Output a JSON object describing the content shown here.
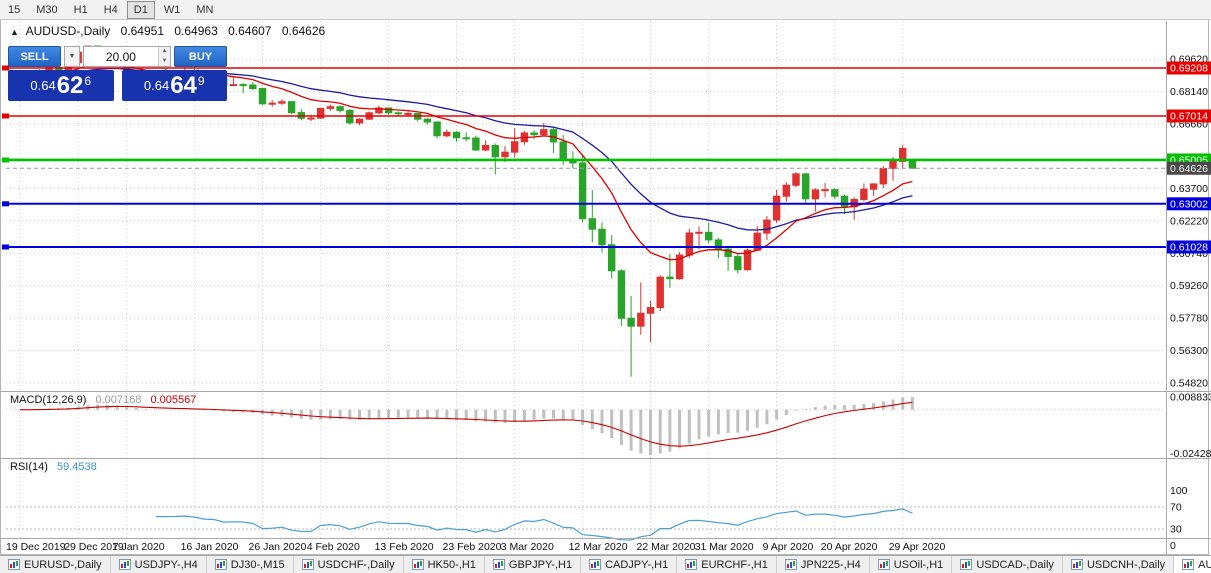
{
  "toolbar": {
    "timeframes": [
      {
        "label": "15",
        "active": false
      },
      {
        "label": "M30",
        "active": false
      },
      {
        "label": "H1",
        "active": false
      },
      {
        "label": "H4",
        "active": false
      },
      {
        "label": "D1",
        "active": true
      },
      {
        "label": "W1",
        "active": false
      },
      {
        "label": "MN",
        "active": false
      }
    ]
  },
  "chart_header": {
    "collapse_arrow": "▲",
    "title": "AUDUSD-,Daily",
    "open": "0.64951",
    "high": "0.64963",
    "low": "0.64607",
    "close": "0.64626"
  },
  "one_click": {
    "sell_label": "SELL",
    "buy_label": "BUY",
    "volume": "20.00",
    "dropdown_glyph": "▼",
    "spinner_up": "▲",
    "spinner_down": "▼",
    "sell_price_prefix": "0.64",
    "sell_price_big": "62",
    "sell_price_sup": "6",
    "buy_price_prefix": "0.64",
    "buy_price_big": "64",
    "buy_price_sup": "9"
  },
  "price_axis": {
    "ticks": [
      "0.69620",
      "0.68140",
      "0.66660",
      "0.63700",
      "0.62220",
      "0.60740",
      "0.59260",
      "0.57780",
      "0.56300",
      "0.54820"
    ],
    "current": {
      "label": "0.64626",
      "value": 0.64626,
      "color": "#4a4a4a"
    }
  },
  "hlines": [
    {
      "label": "0.69208",
      "value": 0.69208,
      "color": "#e60000",
      "width": 1.4
    },
    {
      "label": "0.67014",
      "value": 0.67014,
      "color": "#e60000",
      "width": 1.4
    },
    {
      "label": "0.65005",
      "value": 0.65005,
      "color": "#00c000",
      "width": 2.6
    },
    {
      "label": "0.63002",
      "value": 0.63002,
      "color": "#0000dd",
      "width": 2
    },
    {
      "label": "0.61028",
      "value": 0.61028,
      "color": "#0000dd",
      "width": 2
    }
  ],
  "time_axis": [
    {
      "label": "19 Dec 2019",
      "idx": 0
    },
    {
      "label": "29 Dec 2019",
      "idx": 6
    },
    {
      "label": "7 Jan 2020",
      "idx": 11
    },
    {
      "label": "16 Jan 2020",
      "idx": 18
    },
    {
      "label": "26 Jan 2020",
      "idx": 25
    },
    {
      "label": "4 Feb 2020",
      "idx": 31
    },
    {
      "label": "13 Feb 2020",
      "idx": 38
    },
    {
      "label": "23 Feb 2020",
      "idx": 45
    },
    {
      "label": "3 Mar 2020",
      "idx": 51
    },
    {
      "label": "12 Mar 2020",
      "idx": 58
    },
    {
      "label": "22 Mar 2020",
      "idx": 65
    },
    {
      "label": "31 Mar 2020",
      "idx": 71
    },
    {
      "label": "9 Apr 2020",
      "idx": 78
    },
    {
      "label": "20 Apr 2020",
      "idx": 84
    },
    {
      "label": "29 Apr 2020",
      "idx": 91
    }
  ],
  "macd_panel": {
    "name": "MACD(12,26,9)",
    "value_main": "0.007168",
    "value_signal": "0.005567",
    "axis_high": "0.008833",
    "axis_low": "-0.024281",
    "histogram_color": "#c0c0c0",
    "signal_color": "#cc0000"
  },
  "rsi_panel": {
    "name": "RSI(14)",
    "value": "59.4538",
    "axis": [
      "100",
      "70",
      "30",
      "0"
    ],
    "levels": [
      70,
      30
    ],
    "line_color": "#4da0d6"
  },
  "chart_data": {
    "type": "candlestick",
    "title": "AUDUSD-,Daily",
    "color_convention": "red body = bullish, green body = bearish",
    "up_color": "#e03030",
    "down_color": "#28a428",
    "ma_fast": {
      "name": "MA fast (red)",
      "derived": "EMA12 of closes",
      "color": "#e00000"
    },
    "ma_slow": {
      "name": "MA slow (blue)",
      "derived": "EMA26 of closes",
      "color": "#1a1aa6"
    },
    "ylim": [
      0.5449,
      0.7026
    ],
    "horizontal_levels": [
      0.69208,
      0.67014,
      0.65005,
      0.63002,
      0.61028
    ],
    "last_price": 0.64626,
    "indicators": [
      {
        "type": "MACD",
        "params": [
          12,
          26,
          9
        ],
        "current": [
          0.007168,
          0.005567
        ],
        "axis_extremes": [
          0.008833,
          -0.024281
        ]
      },
      {
        "type": "RSI",
        "params": [
          14
        ],
        "current": 59.4538,
        "levels": [
          70,
          30
        ]
      }
    ],
    "ohlc": [
      [
        0.6852,
        0.6885,
        0.6844,
        0.6881
      ],
      [
        0.6881,
        0.6906,
        0.687,
        0.69
      ],
      [
        0.69,
        0.6915,
        0.6888,
        0.6907
      ],
      [
        0.6907,
        0.6925,
        0.69,
        0.6923
      ],
      [
        0.6923,
        0.693,
        0.6903,
        0.6914
      ],
      [
        0.6914,
        0.6946,
        0.6908,
        0.6945
      ],
      [
        0.6945,
        0.7,
        0.6938,
        0.6993
      ],
      [
        0.6993,
        0.7021,
        0.6983,
        0.7021
      ],
      [
        0.7021,
        0.7021,
        0.698,
        0.6983
      ],
      [
        0.6983,
        0.6995,
        0.6937,
        0.695
      ],
      [
        0.695,
        0.6958,
        0.6925,
        0.6935
      ],
      [
        0.6935,
        0.6941,
        0.6855,
        0.6865
      ],
      [
        0.6865,
        0.6884,
        0.685,
        0.6868
      ],
      [
        0.6868,
        0.6875,
        0.6849,
        0.6855
      ],
      [
        0.6855,
        0.6905,
        0.6853,
        0.6901
      ],
      [
        0.6901,
        0.692,
        0.689,
        0.69
      ],
      [
        0.69,
        0.6911,
        0.6886,
        0.6901
      ],
      [
        0.6901,
        0.6926,
        0.6893,
        0.6906
      ],
      [
        0.6906,
        0.6933,
        0.689,
        0.6896
      ],
      [
        0.6896,
        0.6904,
        0.687,
        0.6875
      ],
      [
        0.6875,
        0.6884,
        0.6863,
        0.6871
      ],
      [
        0.6871,
        0.6878,
        0.6836,
        0.6842
      ],
      [
        0.6842,
        0.6879,
        0.684,
        0.6845
      ],
      [
        0.6845,
        0.6852,
        0.6806,
        0.6843
      ],
      [
        0.6843,
        0.6857,
        0.682,
        0.6827
      ],
      [
        0.6827,
        0.6831,
        0.6753,
        0.6757
      ],
      [
        0.6757,
        0.6774,
        0.6744,
        0.676
      ],
      [
        0.676,
        0.6778,
        0.6752,
        0.6767
      ],
      [
        0.6767,
        0.677,
        0.671,
        0.6717
      ],
      [
        0.6717,
        0.6733,
        0.6682,
        0.6691
      ],
      [
        0.6691,
        0.6708,
        0.6678,
        0.6692
      ],
      [
        0.6692,
        0.674,
        0.6688,
        0.6736
      ],
      [
        0.6736,
        0.6753,
        0.6725,
        0.6744
      ],
      [
        0.6744,
        0.675,
        0.6717,
        0.6727
      ],
      [
        0.6727,
        0.6733,
        0.6662,
        0.667
      ],
      [
        0.667,
        0.6692,
        0.666,
        0.6687
      ],
      [
        0.6687,
        0.6722,
        0.6683,
        0.6716
      ],
      [
        0.6716,
        0.6748,
        0.671,
        0.6738
      ],
      [
        0.6738,
        0.674,
        0.6706,
        0.6716
      ],
      [
        0.6716,
        0.6723,
        0.67,
        0.6713
      ],
      [
        0.6713,
        0.6723,
        0.67,
        0.6713
      ],
      [
        0.6713,
        0.6715,
        0.6677,
        0.6687
      ],
      [
        0.6687,
        0.6691,
        0.6662,
        0.6674
      ],
      [
        0.6674,
        0.6677,
        0.66,
        0.6611
      ],
      [
        0.6611,
        0.664,
        0.6604,
        0.6627
      ],
      [
        0.6627,
        0.6633,
        0.6585,
        0.6602
      ],
      [
        0.6602,
        0.6627,
        0.6586,
        0.6601
      ],
      [
        0.6601,
        0.6612,
        0.6542,
        0.6546
      ],
      [
        0.6546,
        0.659,
        0.6541,
        0.6567
      ],
      [
        0.6567,
        0.6576,
        0.6434,
        0.6515
      ],
      [
        0.6515,
        0.6563,
        0.6491,
        0.6536
      ],
      [
        0.6536,
        0.6646,
        0.6511,
        0.6584
      ],
      [
        0.6584,
        0.6634,
        0.657,
        0.6624
      ],
      [
        0.6624,
        0.6637,
        0.6596,
        0.6616
      ],
      [
        0.6616,
        0.667,
        0.6607,
        0.6639
      ],
      [
        0.6639,
        0.6648,
        0.6533,
        0.6583
      ],
      [
        0.6583,
        0.6614,
        0.6477,
        0.65
      ],
      [
        0.65,
        0.654,
        0.6463,
        0.6487
      ],
      [
        0.6487,
        0.6527,
        0.6214,
        0.6232
      ],
      [
        0.6232,
        0.6363,
        0.6124,
        0.6184
      ],
      [
        0.6184,
        0.6215,
        0.6078,
        0.6113
      ],
      [
        0.6113,
        0.6157,
        0.5958,
        0.5994
      ],
      [
        0.5994,
        0.6001,
        0.5742,
        0.5777
      ],
      [
        0.5777,
        0.588,
        0.551,
        0.5741
      ],
      [
        0.5741,
        0.5941,
        0.5702,
        0.58
      ],
      [
        0.58,
        0.5857,
        0.5668,
        0.5826
      ],
      [
        0.5826,
        0.5974,
        0.581,
        0.5965
      ],
      [
        0.5965,
        0.6071,
        0.5916,
        0.5958
      ],
      [
        0.5958,
        0.608,
        0.5953,
        0.6066
      ],
      [
        0.6066,
        0.6186,
        0.6052,
        0.6167
      ],
      [
        0.6167,
        0.6197,
        0.6093,
        0.617
      ],
      [
        0.617,
        0.6214,
        0.6118,
        0.6135
      ],
      [
        0.6135,
        0.6146,
        0.6051,
        0.6093
      ],
      [
        0.6093,
        0.6107,
        0.5994,
        0.6059
      ],
      [
        0.6059,
        0.6076,
        0.5982,
        0.5999
      ],
      [
        0.5999,
        0.6096,
        0.5994,
        0.6088
      ],
      [
        0.6088,
        0.6199,
        0.6086,
        0.6166
      ],
      [
        0.6166,
        0.6244,
        0.6135,
        0.6226
      ],
      [
        0.6226,
        0.6364,
        0.6212,
        0.6335
      ],
      [
        0.6335,
        0.6399,
        0.631,
        0.6385
      ],
      [
        0.6385,
        0.6445,
        0.6375,
        0.6437
      ],
      [
        0.6437,
        0.6441,
        0.63,
        0.6323
      ],
      [
        0.6323,
        0.6371,
        0.6265,
        0.6364
      ],
      [
        0.6364,
        0.6395,
        0.633,
        0.6365
      ],
      [
        0.6365,
        0.6372,
        0.6321,
        0.6335
      ],
      [
        0.6335,
        0.6341,
        0.6253,
        0.6287
      ],
      [
        0.6287,
        0.633,
        0.6227,
        0.632
      ],
      [
        0.632,
        0.6393,
        0.6312,
        0.6367
      ],
      [
        0.6367,
        0.6394,
        0.6336,
        0.6391
      ],
      [
        0.6391,
        0.6472,
        0.6372,
        0.6462
      ],
      [
        0.6462,
        0.6514,
        0.6405,
        0.6494
      ],
      [
        0.6494,
        0.657,
        0.646,
        0.6553
      ],
      [
        0.64951,
        0.64963,
        0.64607,
        0.64626
      ]
    ]
  },
  "tabs": {
    "items": [
      {
        "label": "EURUSD-,Daily",
        "active": false
      },
      {
        "label": "USDJPY-,H4",
        "active": false
      },
      {
        "label": "DJ30-,M15",
        "active": false
      },
      {
        "label": "USDCHF-,Daily",
        "active": false
      },
      {
        "label": "HK50-,H1",
        "active": false
      },
      {
        "label": "GBPJPY-,H1",
        "active": false
      },
      {
        "label": "CADJPY-,H1",
        "active": false
      },
      {
        "label": "EURCHF-,H1",
        "active": false
      },
      {
        "label": "JPN225-,H4",
        "active": false
      },
      {
        "label": "USOil-,H1",
        "active": false
      },
      {
        "label": "USDCAD-,Daily",
        "active": false
      },
      {
        "label": "USDCNH-,Daily",
        "active": false
      },
      {
        "label": "AUDUSD-,Daily",
        "active": true
      }
    ]
  }
}
